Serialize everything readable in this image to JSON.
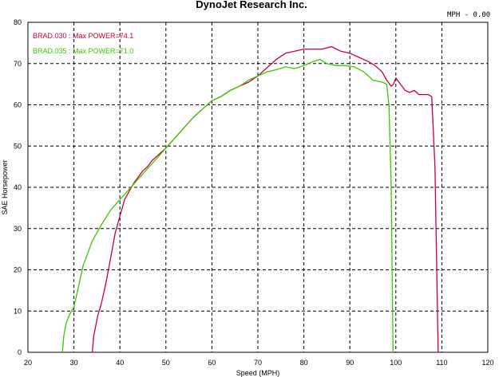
{
  "chart_data": {
    "type": "line",
    "title": "DynoJet Research Inc.",
    "corner_readout": "MPH - 0.00",
    "xlabel": "Speed (MPH)",
    "ylabel": "SAE Horsepower",
    "xlim": [
      20,
      120
    ],
    "ylim": [
      0,
      80
    ],
    "xticks": [
      20,
      30,
      40,
      50,
      60,
      70,
      80,
      90,
      100,
      110,
      120
    ],
    "yticks": [
      0,
      10,
      20,
      30,
      40,
      50,
      60,
      70,
      80
    ],
    "grid": true,
    "legend_position": "top-left",
    "series": [
      {
        "name": "BRAD.030 : Max POWER=74.1",
        "color": "#cc0033",
        "points": [
          [
            34.0,
            0
          ],
          [
            34.3,
            4
          ],
          [
            35.2,
            9
          ],
          [
            36.0,
            12
          ],
          [
            37.0,
            17
          ],
          [
            38.0,
            23
          ],
          [
            39.0,
            29
          ],
          [
            40.0,
            33
          ],
          [
            41.0,
            37
          ],
          [
            42.0,
            39
          ],
          [
            43.0,
            41
          ],
          [
            44.0,
            42.5
          ],
          [
            45.0,
            44
          ],
          [
            46.0,
            45
          ],
          [
            47.0,
            46.5
          ],
          [
            48.0,
            47.5
          ],
          [
            49.0,
            48.5
          ],
          [
            50.0,
            49.5
          ],
          [
            52.0,
            52
          ],
          [
            54.0,
            54.5
          ],
          [
            56.0,
            57
          ],
          [
            58.0,
            59
          ],
          [
            60.0,
            61
          ],
          [
            62.0,
            62
          ],
          [
            64.0,
            63.5
          ],
          [
            66.0,
            64.5
          ],
          [
            68.0,
            65.5
          ],
          [
            70.0,
            67
          ],
          [
            72.0,
            69
          ],
          [
            74.0,
            71
          ],
          [
            76.0,
            72.5
          ],
          [
            78.0,
            73
          ],
          [
            80.0,
            73.5
          ],
          [
            82.0,
            73.5
          ],
          [
            84.0,
            73.5
          ],
          [
            86.0,
            74.1
          ],
          [
            88.0,
            73
          ],
          [
            90.0,
            72.5
          ],
          [
            92.0,
            71.5
          ],
          [
            94.0,
            70.5
          ],
          [
            95.5,
            69.5
          ],
          [
            97.0,
            68
          ],
          [
            98.0,
            66
          ],
          [
            99.0,
            64.5
          ],
          [
            99.5,
            65
          ],
          [
            100.0,
            66.5
          ],
          [
            101.0,
            65
          ],
          [
            102.0,
            63.5
          ],
          [
            103.0,
            63
          ],
          [
            104.0,
            63.5
          ],
          [
            105.0,
            62.5
          ],
          [
            106.0,
            62.5
          ],
          [
            107.0,
            62.5
          ],
          [
            107.8,
            62
          ],
          [
            108.5,
            45
          ],
          [
            109.2,
            0
          ]
        ]
      },
      {
        "name": "BRAD.035 : Max POWER=71.0",
        "color": "#33cc00",
        "points": [
          [
            27.5,
            0
          ],
          [
            27.8,
            4
          ],
          [
            28.3,
            7
          ],
          [
            29.0,
            9
          ],
          [
            30.0,
            11
          ],
          [
            31.0,
            16
          ],
          [
            32.0,
            21
          ],
          [
            33.0,
            24
          ],
          [
            34.0,
            27
          ],
          [
            36.0,
            31
          ],
          [
            38.0,
            34.5
          ],
          [
            40.0,
            37
          ],
          [
            42.0,
            39.5
          ],
          [
            44.0,
            42
          ],
          [
            46.0,
            44.5
          ],
          [
            48.0,
            47
          ],
          [
            50.0,
            49.5
          ],
          [
            52.0,
            52
          ],
          [
            54.0,
            54.5
          ],
          [
            56.0,
            57
          ],
          [
            58.0,
            59
          ],
          [
            60.0,
            61
          ],
          [
            62.0,
            62
          ],
          [
            64.0,
            63.5
          ],
          [
            66.0,
            64.5
          ],
          [
            68.0,
            66
          ],
          [
            70.0,
            67
          ],
          [
            72.0,
            68
          ],
          [
            74.0,
            68.5
          ],
          [
            76.0,
            69.2
          ],
          [
            78.0,
            68.8
          ],
          [
            80.0,
            69.5
          ],
          [
            82.0,
            70.5
          ],
          [
            83.5,
            71.0
          ],
          [
            85.0,
            70
          ],
          [
            87.0,
            69.5
          ],
          [
            89.0,
            69.5
          ],
          [
            91.0,
            69.2
          ],
          [
            93.0,
            68
          ],
          [
            95.0,
            66
          ],
          [
            97.0,
            65.5
          ],
          [
            98.0,
            65
          ],
          [
            98.5,
            60
          ],
          [
            99.0,
            40
          ],
          [
            99.4,
            0
          ]
        ]
      }
    ]
  }
}
